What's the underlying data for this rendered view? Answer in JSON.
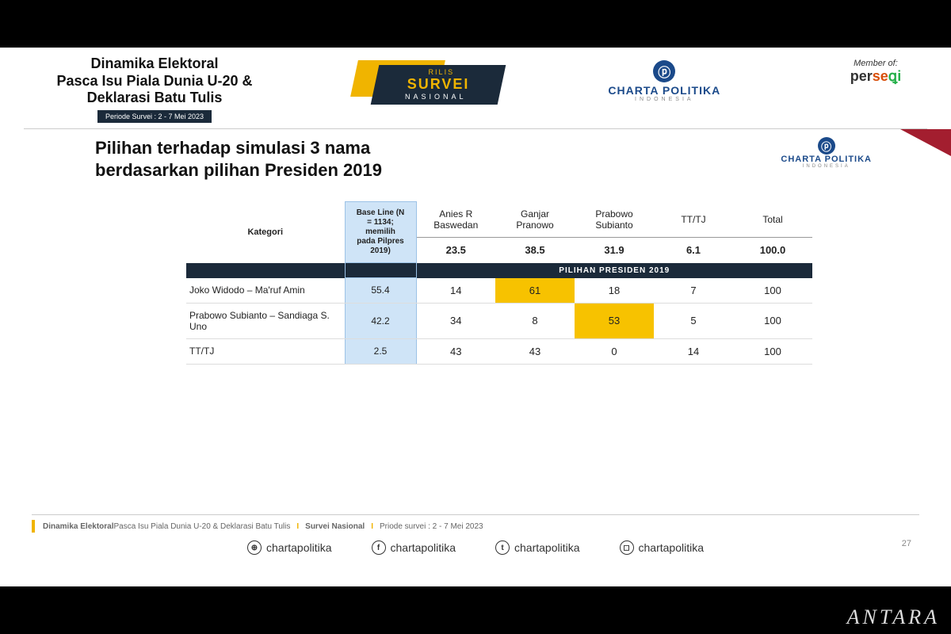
{
  "header": {
    "title_l1": "Dinamika Elektoral",
    "title_l2": "Pasca Isu Piala Dunia U-20 &",
    "title_l3": "Deklarasi Batu Tulis",
    "period_label": "Periode Survei : 2 - 7 Mei 2023",
    "rilis_t1": "RILIS",
    "rilis_t2": "SURVEI",
    "rilis_t3": "NASIONAL",
    "cp_name": "CHARTA POLITIKA",
    "cp_sub": "INDONESIA",
    "member_label": "Member of:",
    "member_p1": "per",
    "member_p2": "se",
    "member_q": "ꝗi"
  },
  "content": {
    "slide_title_l1": "Pilihan terhadap simulasi 3 nama",
    "slide_title_l2": "berdasarkan pilihan Presiden 2019"
  },
  "table": {
    "kategori_label": "Kategori",
    "baseline_label": "Base Line (N = 1134; memilih pada Pilpres 2019)",
    "columns": [
      "Anies R Baswedan",
      "Ganjar Pranowo",
      "Prabowo Subianto",
      "TT/TJ",
      "Total"
    ],
    "summary": [
      "23.5",
      "38.5",
      "31.9",
      "6.1",
      "100.0"
    ],
    "section_label": "PILIHAN PRESIDEN 2019",
    "rows": [
      {
        "cat": "Joko Widodo – Ma'ruf Amin",
        "baseline": "55.4",
        "cells": [
          "14",
          "61",
          "18",
          "7",
          "100"
        ],
        "highlight_index": 1
      },
      {
        "cat": "Prabowo Subianto – Sandiaga S. Uno",
        "baseline": "42.2",
        "cells": [
          "34",
          "8",
          "53",
          "5",
          "100"
        ],
        "highlight_index": 2
      },
      {
        "cat": "TT/TJ",
        "baseline": "2.5",
        "cells": [
          "43",
          "43",
          "0",
          "14",
          "100"
        ],
        "highlight_index": -1
      }
    ],
    "colors": {
      "baseline_bg": "#cfe4f7",
      "section_bg": "#1b2a3a",
      "highlight_bg": "#f7c200"
    }
  },
  "footer": {
    "text_bold": "Dinamika Elektoral",
    "text_rest": " Pasca Isu Piala Dunia U-20 & Deklarasi Batu Tulis",
    "survei": "Survei Nasional",
    "periode": "Priode survei : 2 - 7 Mei 2023",
    "page_no": "27",
    "social_handle": "chartapolitika"
  },
  "watermark": "ANTARA"
}
